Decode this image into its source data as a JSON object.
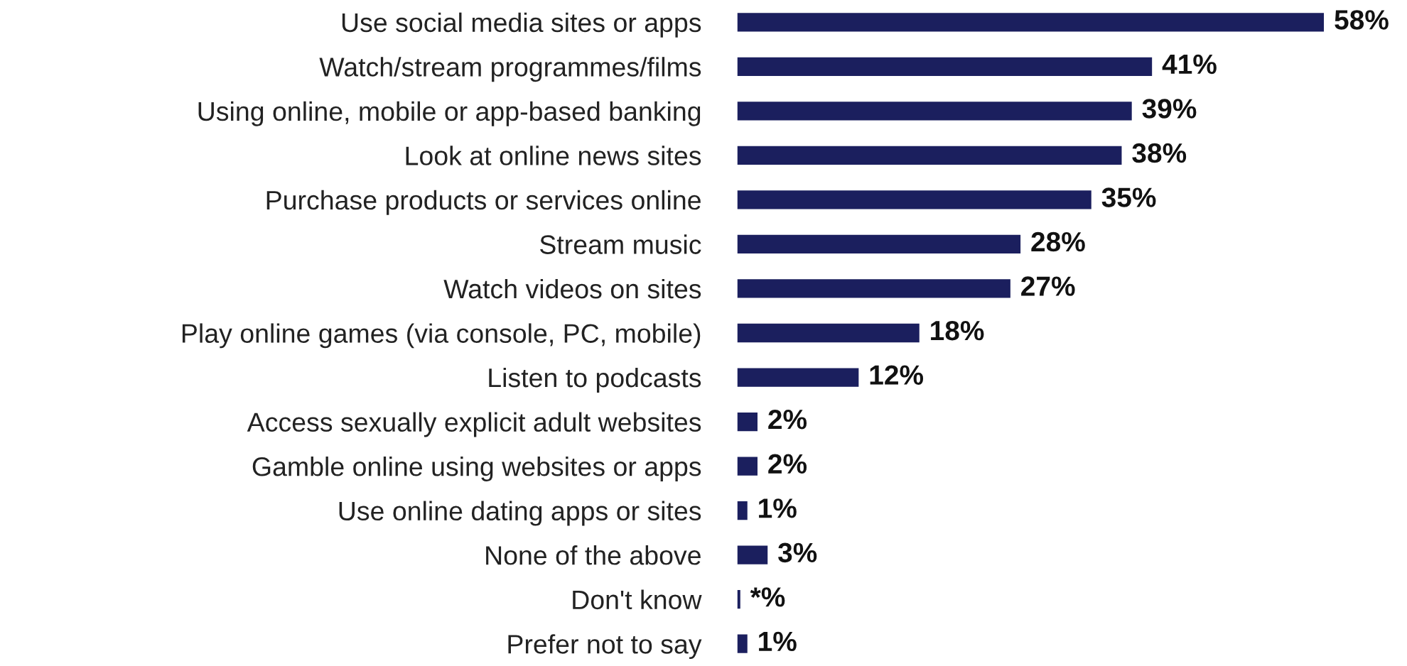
{
  "chart_data": {
    "type": "bar",
    "orientation": "horizontal",
    "categories": [
      "Use social media sites or apps",
      "Watch/stream programmes/films",
      "Using online, mobile or app-based banking",
      "Look at online news sites",
      "Purchase products or services online",
      "Stream music",
      "Watch videos on sites",
      "Play online games (via console, PC, mobile)",
      "Listen to podcasts",
      "Access sexually explicit adult websites",
      "Gamble online using websites or apps",
      "Use online dating apps or sites",
      "None of the above",
      "Don't know",
      "Prefer not to say"
    ],
    "values": [
      58,
      41,
      39,
      38,
      35,
      28,
      27,
      18,
      12,
      2,
      2,
      1,
      3,
      0.3,
      1
    ],
    "value_labels": [
      "58%",
      "41%",
      "39%",
      "38%",
      "35%",
      "28%",
      "27%",
      "18%",
      "12%",
      "2%",
      "2%",
      "1%",
      "3%",
      "*%",
      "1%"
    ],
    "color": "#1b1f5e",
    "grid": false,
    "legend": false
  }
}
